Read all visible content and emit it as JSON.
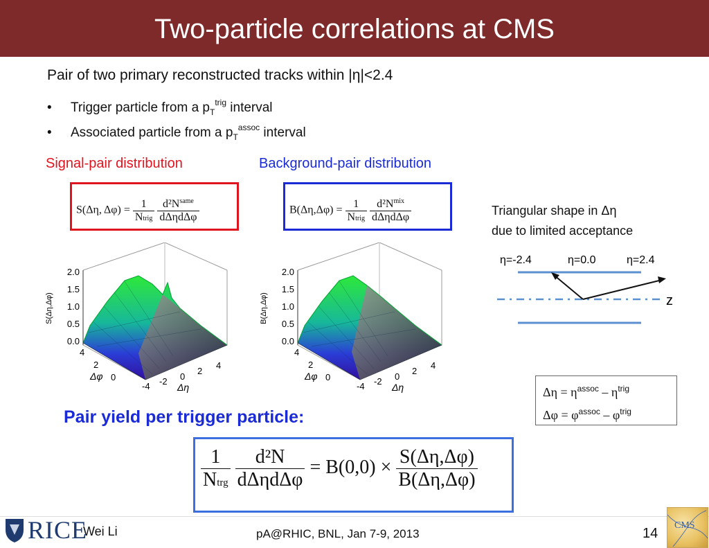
{
  "header": {
    "title": "Two-particle correlations at CMS"
  },
  "intro": {
    "lead": "Pair of two primary reconstructed tracks within |η|<2.4",
    "bullet_char": "•",
    "bullets": [
      {
        "pre": "Trigger particle from a p",
        "sub": "T",
        "sup": "trig",
        "post": " interval"
      },
      {
        "pre": "Associated particle from a p",
        "sub": "T",
        "sup": "assoc",
        "post": " interval"
      }
    ]
  },
  "signal": {
    "heading": "Signal-pair distribution",
    "lhs": "S(Δη, Δφ) =",
    "num1": "1",
    "den1": "N",
    "den1_sub": "trig",
    "num2": "d²N",
    "num2_sup": "same",
    "den2": "dΔηdΔφ",
    "zlabel": "S(Δη,Δφ)"
  },
  "background": {
    "heading": "Background-pair distribution",
    "lhs": "B(Δη,Δφ) =",
    "num1": "1",
    "den1": "N",
    "den1_sub": "trig",
    "num2": "d²N",
    "num2_sup": "mix",
    "den2": "dΔηdΔφ",
    "zlabel": "B(Δη,Δφ)"
  },
  "plot_axes": {
    "z_ticks": [
      "2.0",
      "1.5",
      "1.0",
      "0.5",
      "0.0"
    ],
    "phi_ticks": [
      "4",
      "2",
      "0"
    ],
    "phi_label": "Δφ",
    "eta_ticks": [
      "-4",
      "-2",
      "0",
      "2",
      "4"
    ],
    "eta_label": "Δη"
  },
  "acceptance": {
    "note_line1": "Triangular shape in Δη",
    "note_line2": "due to limited acceptance",
    "labels": [
      "η=-2.4",
      "η=0.0",
      "η=2.4"
    ],
    "axis": "z"
  },
  "definitions": {
    "line1": {
      "lhs": "Δη = η",
      "sup1": "assoc",
      "mid": " – η",
      "sup2": "trig"
    },
    "line2": {
      "lhs": "Δφ = φ",
      "sup1": "assoc",
      "mid": " – φ",
      "sup2": "trig"
    }
  },
  "yield": {
    "heading": "Pair yield per trigger particle:",
    "num1": "1",
    "den1": "N",
    "den1_sub": "trg",
    "num2": "d²N",
    "den2": "dΔηdΔφ",
    "middle": "= B(0,0) ×",
    "num3": "S(Δη,Δφ)",
    "den3": "B(Δη,Δφ)"
  },
  "footer": {
    "logo_text": "RICE",
    "author": "Wei Li",
    "event": "pA@RHIC, BNL, Jan 7-9, 2013",
    "page": "14",
    "cms_logo_text": "CMS"
  },
  "colors": {
    "title_bg": "#7e2a2a",
    "signal": "#e0141e",
    "background": "#1a2bd6",
    "yield_box": "#3b6fe0"
  }
}
